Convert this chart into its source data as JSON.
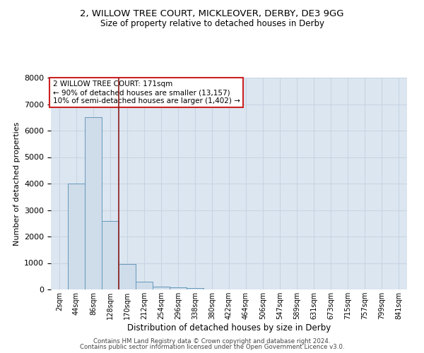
{
  "title1": "2, WILLOW TREE COURT, MICKLEOVER, DERBY, DE3 9GG",
  "title2": "Size of property relative to detached houses in Derby",
  "xlabel": "Distribution of detached houses by size in Derby",
  "ylabel": "Number of detached properties",
  "bar_labels": [
    "2sqm",
    "44sqm",
    "86sqm",
    "128sqm",
    "170sqm",
    "212sqm",
    "254sqm",
    "296sqm",
    "338sqm",
    "380sqm",
    "422sqm",
    "464sqm",
    "506sqm",
    "547sqm",
    "589sqm",
    "631sqm",
    "673sqm",
    "715sqm",
    "757sqm",
    "799sqm",
    "841sqm"
  ],
  "bar_values": [
    0,
    4000,
    6500,
    2600,
    950,
    300,
    100,
    80,
    60,
    0,
    0,
    0,
    0,
    0,
    0,
    0,
    0,
    0,
    0,
    0,
    0
  ],
  "bar_color": "#cfdcea",
  "bar_edgecolor": "#6699bb",
  "vline_x": 3.5,
  "vline_color": "#8b1a1a",
  "annotation_title": "2 WILLOW TREE COURT: 171sqm",
  "annotation_line1": "← 90% of detached houses are smaller (13,157)",
  "annotation_line2": "10% of semi-detached houses are larger (1,402) →",
  "annotation_box_edgecolor": "#cc2222",
  "ylim": [
    0,
    8000
  ],
  "yticks": [
    0,
    1000,
    2000,
    3000,
    4000,
    5000,
    6000,
    7000,
    8000
  ],
  "grid_color": "#c8d4e4",
  "background_color": "#dce6f0",
  "footer1": "Contains HM Land Registry data © Crown copyright and database right 2024.",
  "footer2": "Contains public sector information licensed under the Open Government Licence v3.0."
}
